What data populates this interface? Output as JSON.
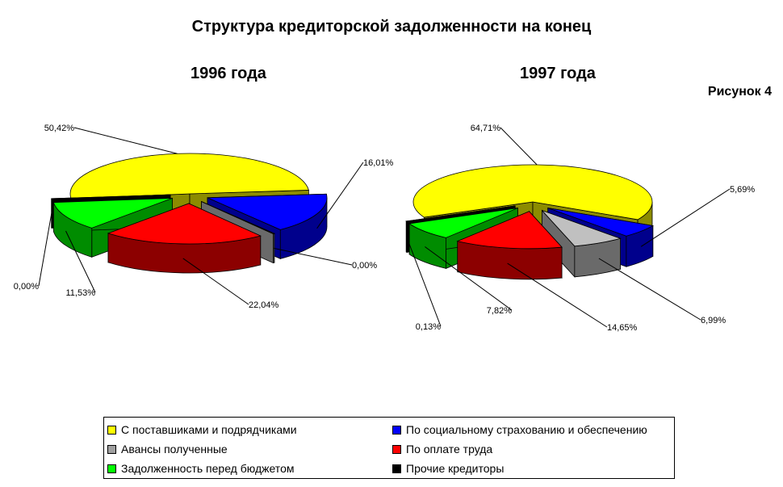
{
  "title": "Структура кредиторской задолженности на конец",
  "figure_label": "Рисунок 4",
  "categories": [
    "С поставшиками и подрядчиками",
    "По социальному страхованию и обеспечению",
    "Авансы полученные",
    "По оплате труда",
    "Задолженность перед бюджетом",
    "Прочие кредиторы"
  ],
  "colors": [
    "#ffff00",
    "#0000ff",
    "#c0c0c0",
    "#ff0000",
    "#00ff00",
    "#000000"
  ],
  "chart_data": [
    {
      "type": "pie",
      "subtitle": "1996 года",
      "categories": [
        "С поставшиками и подрядчиками",
        "По социальному страхованию и обеспечению",
        "Авансы полученные",
        "По оплате труда",
        "Задолженность перед бюджетом",
        "Прочие кредиторы"
      ],
      "values": [
        50.42,
        16.01,
        0.0,
        22.04,
        11.53,
        0.0
      ],
      "labels": [
        "50,42%",
        "16,01%",
        "0,00%",
        "22,04%",
        "11,53%",
        "0,00%"
      ]
    },
    {
      "type": "pie",
      "subtitle": "1997 года",
      "categories": [
        "С поставшиками и подрядчиками",
        "По социальному страхованию и обеспечению",
        "Авансы полученные",
        "По оплате труда",
        "Задолженность перед бюджетом",
        "Прочие кредиторы"
      ],
      "values": [
        64.71,
        5.69,
        6.99,
        14.65,
        7.82,
        0.13
      ],
      "labels": [
        "64,71%",
        "5,69%",
        "6,99%",
        "14,65%",
        "7,82%",
        "0,13%"
      ]
    }
  ]
}
